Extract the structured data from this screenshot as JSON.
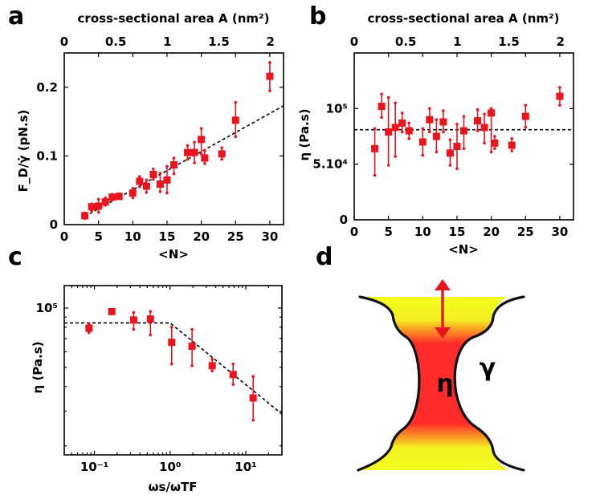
{
  "colors": {
    "marker": "#e8141e",
    "neck_core": "#ff2a2a",
    "neck_outer": "#f2ff1e"
  },
  "panels": {
    "a": {
      "label": "a"
    },
    "b": {
      "label": "b"
    },
    "c": {
      "label": "c"
    },
    "d": {
      "label": "d",
      "eta_symbol": "η",
      "gamma_symbol": "γ"
    }
  },
  "chart_data": [
    {
      "id": "a",
      "type": "scatter",
      "xlabel": "<N>",
      "ylabel": "F_D/γ̇ (pN.s)",
      "top_xlabel": "cross-sectional area A (nm²)",
      "xlim": [
        0,
        32
      ],
      "ylim": [
        0,
        0.25
      ],
      "xticks": [
        0,
        5,
        10,
        15,
        20,
        25,
        30
      ],
      "xtick_labels": [
        "0",
        "5",
        "10",
        "15",
        "20",
        "25",
        "30"
      ],
      "yticks": [
        0,
        0.1,
        0.2
      ],
      "ytick_labels": [
        "0",
        "0.1",
        "0.2"
      ],
      "top_ticks": [
        0,
        0.5,
        1,
        1.5,
        2
      ],
      "top_tick_labels": [
        "0",
        "0.5",
        "1",
        "1.5",
        "2"
      ],
      "fit_line": {
        "style": "dashed",
        "x": [
          3,
          32
        ],
        "y": [
          0.012,
          0.173
        ]
      },
      "points": [
        {
          "x": 3,
          "y": 0.013,
          "lo": 0.009,
          "hi": 0.017
        },
        {
          "x": 4,
          "y": 0.026,
          "lo": 0.02,
          "hi": 0.03
        },
        {
          "x": 5,
          "y": 0.027,
          "lo": 0.018,
          "hi": 0.037
        },
        {
          "x": 6,
          "y": 0.033,
          "lo": 0.028,
          "hi": 0.039
        },
        {
          "x": 7,
          "y": 0.04,
          "lo": 0.036,
          "hi": 0.044
        },
        {
          "x": 8,
          "y": 0.041,
          "lo": 0.038,
          "hi": 0.045
        },
        {
          "x": 10,
          "y": 0.046,
          "lo": 0.039,
          "hi": 0.053
        },
        {
          "x": 11,
          "y": 0.063,
          "lo": 0.055,
          "hi": 0.07
        },
        {
          "x": 12,
          "y": 0.056,
          "lo": 0.047,
          "hi": 0.065
        },
        {
          "x": 13,
          "y": 0.073,
          "lo": 0.066,
          "hi": 0.081
        },
        {
          "x": 14,
          "y": 0.059,
          "lo": 0.048,
          "hi": 0.075
        },
        {
          "x": 15,
          "y": 0.065,
          "lo": 0.046,
          "hi": 0.085
        },
        {
          "x": 16,
          "y": 0.087,
          "lo": 0.074,
          "hi": 0.097
        },
        {
          "x": 18,
          "y": 0.105,
          "lo": 0.095,
          "hi": 0.115
        },
        {
          "x": 19,
          "y": 0.105,
          "lo": 0.09,
          "hi": 0.12
        },
        {
          "x": 20,
          "y": 0.124,
          "lo": 0.103,
          "hi": 0.14
        },
        {
          "x": 20.5,
          "y": 0.097,
          "lo": 0.089,
          "hi": 0.108
        },
        {
          "x": 23,
          "y": 0.103,
          "lo": 0.095,
          "hi": 0.112
        },
        {
          "x": 25,
          "y": 0.152,
          "lo": 0.128,
          "hi": 0.178
        },
        {
          "x": 30,
          "y": 0.216,
          "lo": 0.195,
          "hi": 0.236
        }
      ]
    },
    {
      "id": "b",
      "type": "scatter",
      "xlabel": "<N>",
      "ylabel": "η (Pa.s)",
      "top_xlabel": "cross-sectional area A (nm²)",
      "xlim": [
        0,
        32
      ],
      "ylim": [
        0,
        150000
      ],
      "xticks": [
        0,
        5,
        10,
        15,
        20,
        25,
        30
      ],
      "xtick_labels": [
        "0",
        "5",
        "10",
        "15",
        "20",
        "25",
        "30"
      ],
      "yticks": [
        0,
        50000,
        100000
      ],
      "ytick_labels": [
        "0",
        "5.10⁴",
        "10⁵"
      ],
      "top_ticks": [
        0,
        0.5,
        1,
        1.5,
        2
      ],
      "top_tick_labels": [
        "0",
        "0.5",
        "1",
        "1.5",
        "2"
      ],
      "ref_line": {
        "style": "dashed",
        "y": 81000
      },
      "points": [
        {
          "x": 3,
          "y": 64000,
          "lo": 40000,
          "hi": 82000
        },
        {
          "x": 4,
          "y": 102000,
          "lo": 92000,
          "hi": 113000
        },
        {
          "x": 5,
          "y": 79000,
          "lo": 49000,
          "hi": 110000
        },
        {
          "x": 6,
          "y": 83000,
          "lo": 57000,
          "hi": 105000
        },
        {
          "x": 7,
          "y": 87000,
          "lo": 79000,
          "hi": 96000
        },
        {
          "x": 8,
          "y": 80000,
          "lo": 73000,
          "hi": 87000
        },
        {
          "x": 10,
          "y": 70000,
          "lo": 58000,
          "hi": 82000
        },
        {
          "x": 11,
          "y": 90000,
          "lo": 79000,
          "hi": 100000
        },
        {
          "x": 12,
          "y": 75000,
          "lo": 61000,
          "hi": 90000
        },
        {
          "x": 13,
          "y": 88000,
          "lo": 79000,
          "hi": 98000
        },
        {
          "x": 14,
          "y": 60000,
          "lo": 49000,
          "hi": 72000
        },
        {
          "x": 15,
          "y": 66000,
          "lo": 46000,
          "hi": 86000
        },
        {
          "x": 16,
          "y": 80000,
          "lo": 64000,
          "hi": 93000
        },
        {
          "x": 18,
          "y": 89000,
          "lo": 80000,
          "hi": 99000
        },
        {
          "x": 19,
          "y": 83000,
          "lo": 69000,
          "hi": 95000
        },
        {
          "x": 20,
          "y": 96000,
          "lo": 61000,
          "hi": 100000
        },
        {
          "x": 20.5,
          "y": 69000,
          "lo": 64000,
          "hi": 75000
        },
        {
          "x": 23,
          "y": 67000,
          "lo": 62000,
          "hi": 73000
        },
        {
          "x": 25,
          "y": 93000,
          "lo": 83000,
          "hi": 103000
        },
        {
          "x": 30,
          "y": 111000,
          "lo": 103000,
          "hi": 119000
        }
      ]
    },
    {
      "id": "c",
      "type": "scatter",
      "xscale": "log",
      "yscale": "log",
      "xlabel": "ωs/ωTF",
      "ylabel": "η (Pa.s)",
      "xlim": [
        0.04,
        30
      ],
      "ylim": [
        18000,
        130000
      ],
      "xticks": [
        0.1,
        1,
        10
      ],
      "xtick_labels": [
        "10⁻¹",
        "10⁰",
        "10¹"
      ],
      "yticks": [
        100000
      ],
      "ytick_labels": [
        "10⁵"
      ],
      "fit_line": {
        "style": "dashed",
        "x": [
          0.04,
          1.0,
          30
        ],
        "y": [
          84000,
          84000,
          29000
        ]
      },
      "points": [
        {
          "x": 0.085,
          "y": 79000,
          "lo": 75000,
          "hi": 83000
        },
        {
          "x": 0.17,
          "y": 96000,
          "lo": null,
          "hi": null
        },
        {
          "x": 0.33,
          "y": 87000,
          "lo": 78000,
          "hi": 95000
        },
        {
          "x": 0.55,
          "y": 88000,
          "lo": 73000,
          "hi": 96000
        },
        {
          "x": 1.05,
          "y": 67000,
          "lo": 52000,
          "hi": 80000
        },
        {
          "x": 1.95,
          "y": 64000,
          "lo": 51000,
          "hi": 78000
        },
        {
          "x": 3.6,
          "y": 51000,
          "lo": 48000,
          "hi": 55000
        },
        {
          "x": 6.8,
          "y": 46000,
          "lo": 41000,
          "hi": 52000
        },
        {
          "x": 12.5,
          "y": 35000,
          "lo": 27000,
          "hi": 45000
        }
      ]
    }
  ]
}
